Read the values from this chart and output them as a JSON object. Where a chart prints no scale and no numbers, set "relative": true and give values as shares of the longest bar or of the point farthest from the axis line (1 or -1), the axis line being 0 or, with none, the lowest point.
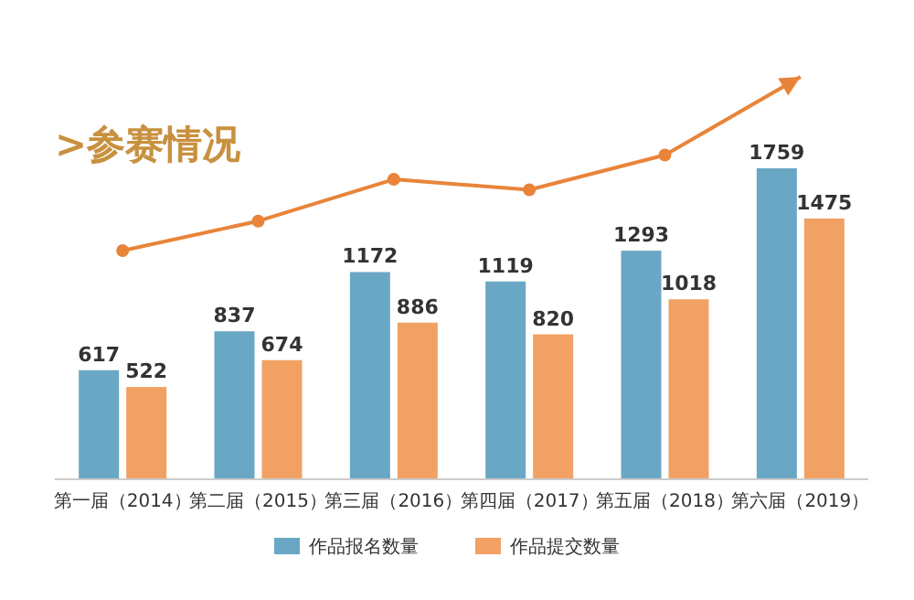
{
  "chart_data": [
    {
      "type": "bar",
      "title": ">参赛情况",
      "categories": [
        "第一届（2014）",
        "第二届（2015）",
        "第三届（2016）",
        "第四届（2017）",
        "第五届（2018）",
        "第六届（2019）"
      ],
      "series": [
        {
          "name": "作品报名数量",
          "color": "#6aa7c4",
          "values": [
            617,
            837,
            1172,
            1119,
            1293,
            1759
          ]
        },
        {
          "name": "作品提交数量",
          "color": "#f2a164",
          "values": [
            522,
            674,
            886,
            820,
            1018,
            1475
          ]
        }
      ],
      "data_labels": true,
      "legend": "bottom"
    },
    {
      "type": "line",
      "relative": true,
      "marker": "circle",
      "categories": [
        null,
        null,
        null,
        null,
        null,
        null
      ],
      "series": [
        {
          "color": "#e8843a",
          "values": [
            0,
            0.17,
            0.41,
            0.35,
            0.55,
            1
          ]
        }
      ]
    }
  ]
}
